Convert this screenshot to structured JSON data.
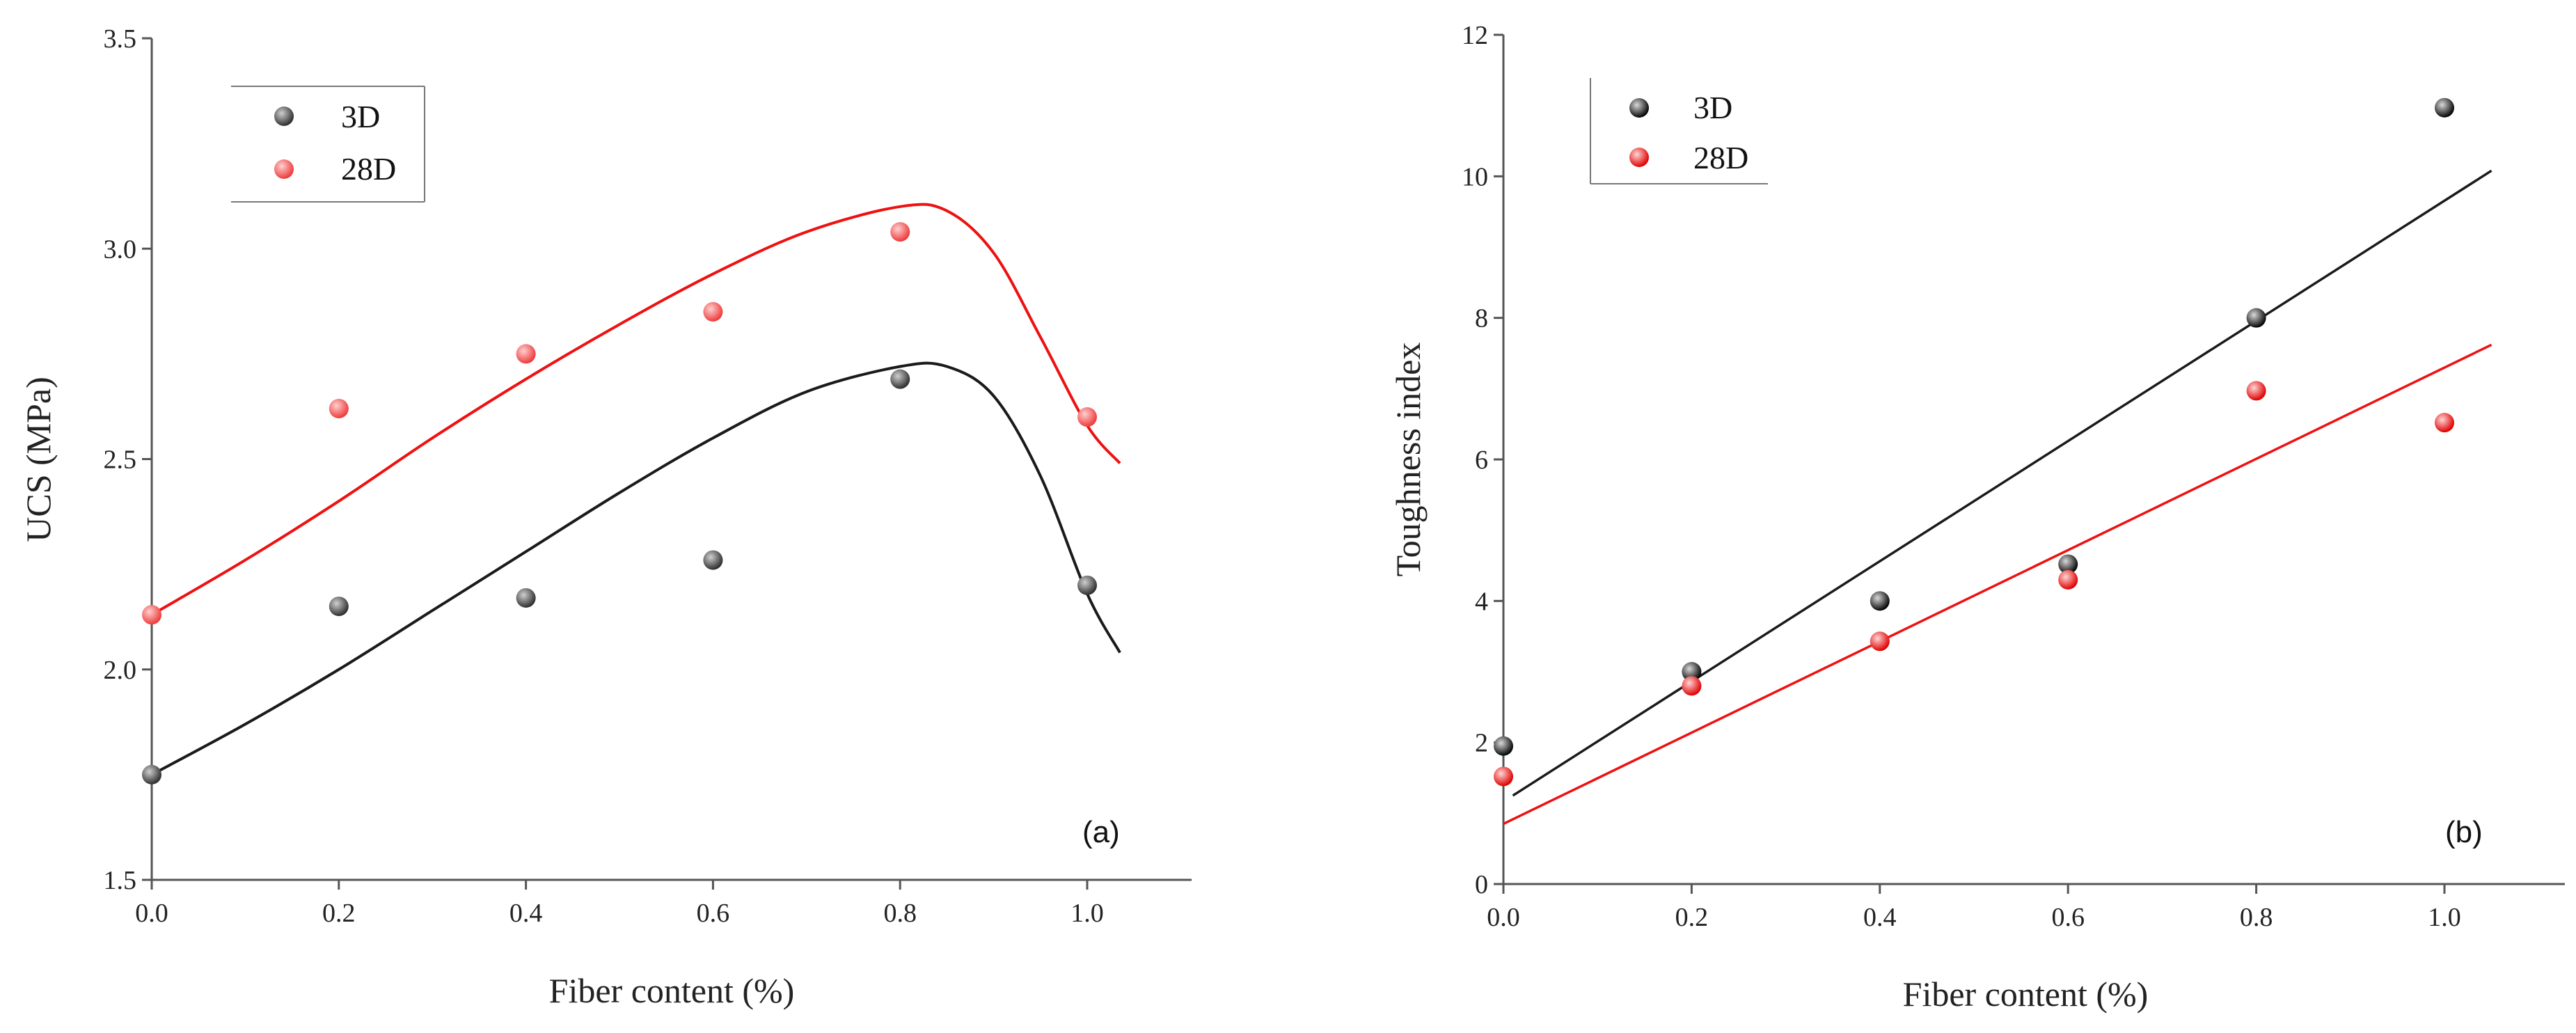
{
  "colors": {
    "s3d": "#1a1a1a",
    "s28d": "#ee1111"
  },
  "chart_data": [
    {
      "type": "scatter",
      "panel_label": "(a)",
      "xlabel": "Fiber content (%)",
      "ylabel": "UCS (MPa)",
      "xlim": [
        0,
        1.1
      ],
      "ylim": [
        1.5,
        3.5
      ],
      "xticks": [
        "0.0",
        "0.2",
        "0.4",
        "0.6",
        "0.8",
        "1.0"
      ],
      "yticks": [
        "1.5",
        "2.0",
        "2.5",
        "3.0",
        "3.5"
      ],
      "legend_position": "top-left",
      "series": [
        {
          "name": "3D",
          "color_key": "s3d",
          "x": [
            0.0,
            0.2,
            0.4,
            0.6,
            0.8,
            1.0
          ],
          "y": [
            1.75,
            2.15,
            2.17,
            2.26,
            2.69,
            2.2
          ],
          "fit_curve": {
            "x": [
              0.0,
              0.1,
              0.2,
              0.3,
              0.4,
              0.5,
              0.6,
              0.7,
              0.8,
              0.85,
              0.9,
              0.95,
              1.0,
              1.035
            ],
            "y": [
              1.75,
              1.87,
              2.0,
              2.14,
              2.28,
              2.42,
              2.55,
              2.66,
              2.72,
              2.72,
              2.65,
              2.46,
              2.18,
              2.04
            ]
          }
        },
        {
          "name": "28D",
          "color_key": "s28d",
          "x": [
            0.0,
            0.2,
            0.4,
            0.6,
            0.8,
            1.0
          ],
          "y": [
            2.13,
            2.62,
            2.75,
            2.85,
            3.04,
            2.6
          ],
          "fit_curve": {
            "x": [
              0.0,
              0.1,
              0.2,
              0.3,
              0.4,
              0.5,
              0.6,
              0.7,
              0.8,
              0.85,
              0.9,
              0.95,
              1.0,
              1.035
            ],
            "y": [
              2.13,
              2.26,
              2.4,
              2.55,
              2.69,
              2.82,
              2.94,
              3.04,
              3.1,
              3.09,
              2.99,
              2.79,
              2.58,
              2.49
            ]
          }
        }
      ]
    },
    {
      "type": "scatter",
      "panel_label": "(b)",
      "xlabel": "Fiber content (%)",
      "ylabel": "Toughness index",
      "xlim": [
        0,
        1.1
      ],
      "ylim": [
        0,
        12
      ],
      "xticks": [
        "0.0",
        "0.2",
        "0.4",
        "0.6",
        "0.8",
        "1.0"
      ],
      "yticks": [
        "0",
        "2",
        "4",
        "6",
        "8",
        "10",
        "12"
      ],
      "legend_position": "top-left",
      "series": [
        {
          "name": "3D",
          "color_key": "s3d",
          "x": [
            0.0,
            0.2,
            0.4,
            0.6,
            0.8,
            1.0
          ],
          "y": [
            1.95,
            3.0,
            4.0,
            4.52,
            8.0,
            10.97
          ],
          "fit_line": {
            "x": [
              0.01,
              1.05
            ],
            "y": [
              1.25,
              10.08
            ]
          }
        },
        {
          "name": "28D",
          "color_key": "s28d",
          "x": [
            0.0,
            0.2,
            0.4,
            0.6,
            0.8,
            1.0
          ],
          "y": [
            1.52,
            2.8,
            3.43,
            4.3,
            6.97,
            6.52
          ],
          "fit_line": {
            "x": [
              0.0,
              1.05
            ],
            "y": [
              0.85,
              7.62
            ]
          }
        }
      ]
    }
  ]
}
